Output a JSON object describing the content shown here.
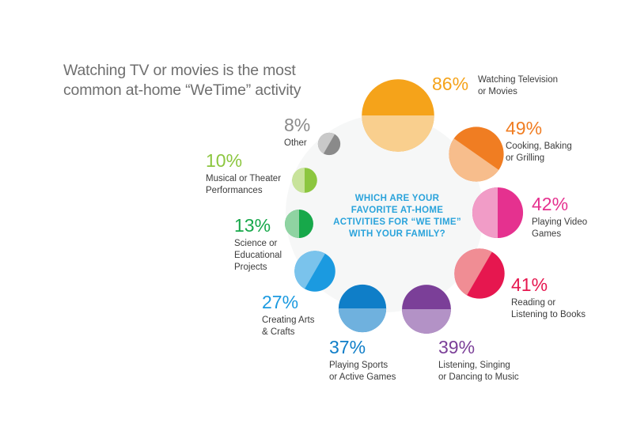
{
  "headline": {
    "line1": "Watching TV or movies is the most",
    "line2": "common at-home “WeTime” activity"
  },
  "center_question": [
    "WHICH ARE YOUR",
    "FAVORITE AT-HOME",
    "ACTIVITIES FOR “WE TIME”",
    "WITH YOUR FAMILY?"
  ],
  "chart_data": {
    "type": "bubble",
    "unit": "%",
    "items": [
      {
        "id": "tv",
        "label_lines": [
          "Watching Television",
          "or Movies"
        ],
        "value": 86,
        "value_label": "86%",
        "color": "#f5a31a",
        "light": "#f9cf8e",
        "split": "horizontal"
      },
      {
        "id": "cooking",
        "label_lines": [
          "Cooking, Baking",
          "or Grilling"
        ],
        "value": 49,
        "value_label": "49%",
        "color": "#f07d22",
        "light": "#f7bd8c",
        "split": "diagonal-a"
      },
      {
        "id": "videogames",
        "label_lines": [
          "Playing Video",
          "Games"
        ],
        "value": 42,
        "value_label": "42%",
        "color": "#e5318f",
        "light": "#f19cc7",
        "split": "vertical"
      },
      {
        "id": "reading",
        "label_lines": [
          "Reading or",
          "Listening to Books"
        ],
        "value": 41,
        "value_label": "41%",
        "color": "#e6174f",
        "light": "#f08d94",
        "split": "diagonal-b"
      },
      {
        "id": "music",
        "label_lines": [
          "Listening, Singing",
          "or Dancing to Music"
        ],
        "value": 39,
        "value_label": "39%",
        "color": "#7b3f98",
        "light": "#b392c6",
        "split": "horizontal"
      },
      {
        "id": "sports",
        "label_lines": [
          "Playing Sports",
          "or Active Games"
        ],
        "value": 37,
        "value_label": "37%",
        "color": "#0f7ec8",
        "light": "#6fb1de",
        "split": "horizontal"
      },
      {
        "id": "arts",
        "label_lines": [
          "Creating Arts",
          "& Crafts"
        ],
        "value": 27,
        "value_label": "27%",
        "color": "#1b9ae0",
        "light": "#7ac3ec",
        "split": "diagonal-c"
      },
      {
        "id": "science",
        "label_lines": [
          "Science or",
          "Educational",
          "Projects"
        ],
        "value": 13,
        "value_label": "13%",
        "color": "#17a84a",
        "light": "#8fd3a2",
        "split": "vertical"
      },
      {
        "id": "musical",
        "label_lines": [
          "Musical or Theater",
          "Performances"
        ],
        "value": 10,
        "value_label": "10%",
        "color": "#8cc63f",
        "light": "#c8e39b",
        "split": "vertical"
      },
      {
        "id": "other",
        "label_lines": [
          "Other"
        ],
        "value": 8,
        "value_label": "8%",
        "color": "#8a8a8a",
        "light": "#c9c9c9",
        "split": "diagonal-c"
      }
    ]
  }
}
